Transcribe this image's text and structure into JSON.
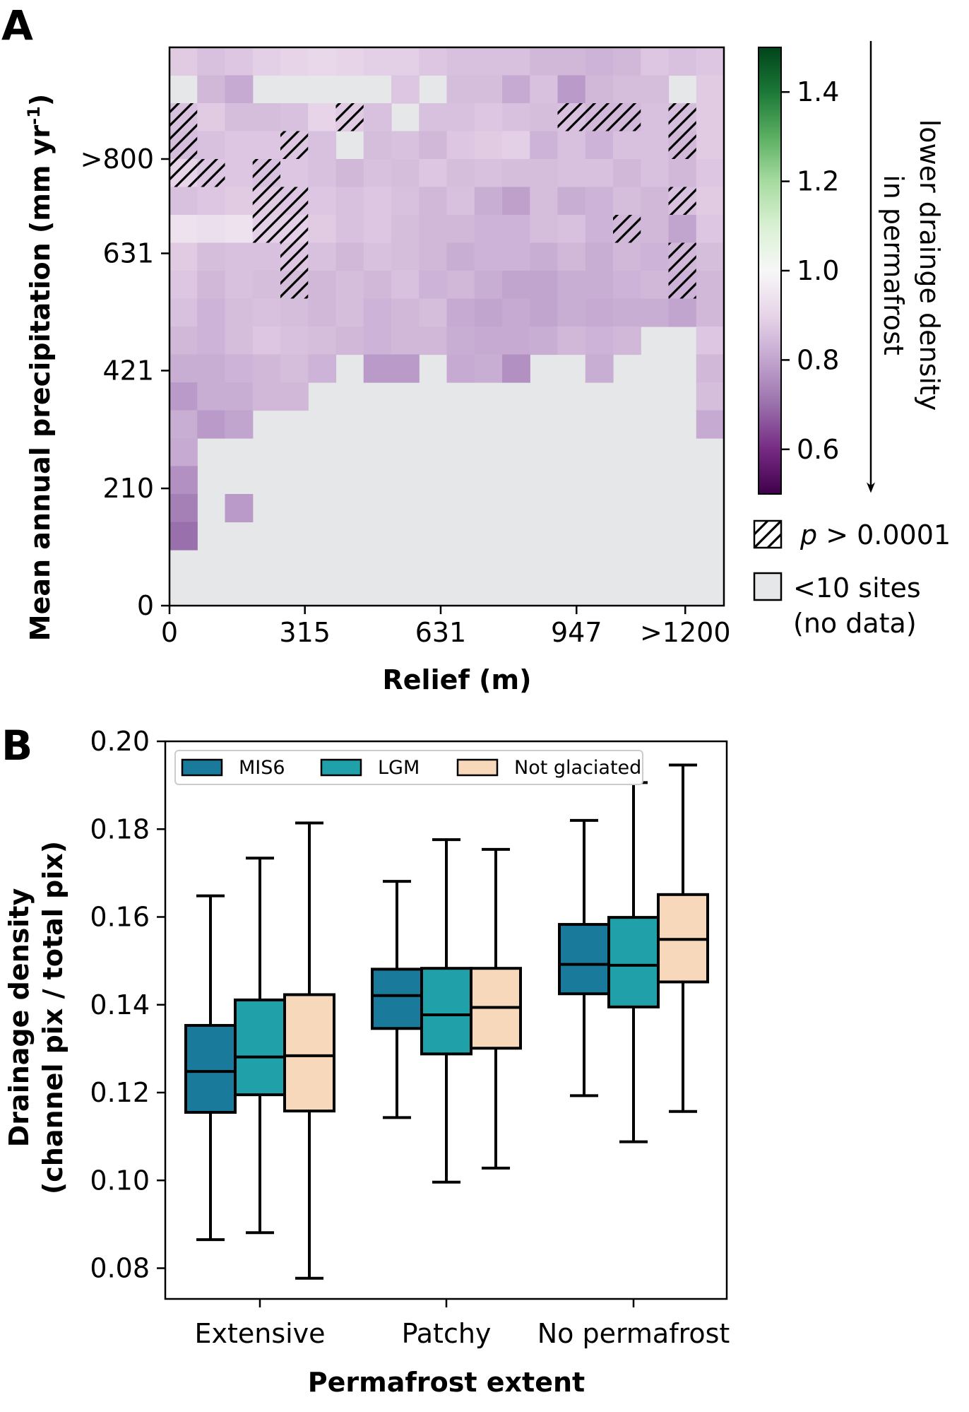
{
  "panels": {
    "a": {
      "label": "A",
      "chart_data": {
        "type": "heatmap",
        "title": "",
        "xlabel": "Relief (m)",
        "ylabel": "Mean annual precipitation (mm yr",
        "ylabel_sup": "-1",
        "ylabel_end": ")",
        "x_ticks": [
          {
            "value": 0,
            "label": "0"
          },
          {
            "value": 315,
            "label": "315"
          },
          {
            "value": 631,
            "label": "631"
          },
          {
            "value": 947,
            "label": "947"
          },
          {
            "value": 1200,
            "label": ">1200"
          }
        ],
        "y_ticks": [
          {
            "value": 0,
            "label": "0"
          },
          {
            "value": 210,
            "label": "210"
          },
          {
            "value": 421,
            "label": "421"
          },
          {
            "value": 631,
            "label": "631"
          },
          {
            "value": 800,
            "label": ">800"
          }
        ],
        "no_data_value": null,
        "rows_top_to_bottom": [
          [
            0.88,
            0.86,
            0.87,
            0.89,
            0.9,
            0.91,
            0.9,
            0.89,
            0.89,
            0.87,
            0.86,
            0.86,
            0.86,
            0.84,
            0.84,
            0.83,
            0.84,
            0.87,
            0.86,
            0.87
          ],
          [
            null,
            0.84,
            0.81,
            null,
            null,
            null,
            null,
            null,
            0.87,
            null,
            0.85,
            0.85,
            0.81,
            0.86,
            0.78,
            0.84,
            0.85,
            0.85,
            null,
            0.88
          ],
          [
            0.86,
            0.88,
            0.85,
            0.85,
            0.86,
            0.9,
            0.88,
            0.86,
            null,
            0.86,
            0.86,
            0.87,
            0.86,
            0.85,
            0.86,
            0.84,
            0.84,
            0.86,
            0.85,
            0.88
          ],
          [
            0.85,
            0.86,
            0.87,
            0.87,
            0.87,
            0.86,
            null,
            0.85,
            0.86,
            0.84,
            0.87,
            0.88,
            0.89,
            0.83,
            0.86,
            0.83,
            0.86,
            0.86,
            0.84,
            0.88
          ],
          [
            0.9,
            0.87,
            0.87,
            0.86,
            0.87,
            0.86,
            0.84,
            0.86,
            0.85,
            0.87,
            0.85,
            0.86,
            0.85,
            0.85,
            0.86,
            0.86,
            0.84,
            0.86,
            0.84,
            0.87
          ],
          [
            0.86,
            0.87,
            0.88,
            0.88,
            0.87,
            0.87,
            0.86,
            0.87,
            0.86,
            0.84,
            0.86,
            0.82,
            0.79,
            0.85,
            0.82,
            0.83,
            0.85,
            0.84,
            0.86,
            0.88
          ],
          [
            0.94,
            0.93,
            0.94,
            0.89,
            0.89,
            0.88,
            0.86,
            0.87,
            0.85,
            0.84,
            0.84,
            0.83,
            0.83,
            0.85,
            0.86,
            0.83,
            0.84,
            0.84,
            0.8,
            0.87
          ],
          [
            0.88,
            0.85,
            0.86,
            0.86,
            0.87,
            0.86,
            0.84,
            0.86,
            0.85,
            0.84,
            0.82,
            0.83,
            0.83,
            0.82,
            0.84,
            0.82,
            0.84,
            0.83,
            0.84,
            0.85
          ],
          [
            0.87,
            0.84,
            0.86,
            0.85,
            0.85,
            0.84,
            0.85,
            0.84,
            0.86,
            0.83,
            0.84,
            0.82,
            0.8,
            0.8,
            0.82,
            0.82,
            0.83,
            0.84,
            0.83,
            0.84
          ],
          [
            0.86,
            0.83,
            0.85,
            0.86,
            0.85,
            0.84,
            0.85,
            0.83,
            0.84,
            0.85,
            0.81,
            0.8,
            0.81,
            0.8,
            0.82,
            0.81,
            0.82,
            0.82,
            0.8,
            0.84
          ],
          [
            0.84,
            0.83,
            0.85,
            0.87,
            0.86,
            0.85,
            0.84,
            0.83,
            0.84,
            0.84,
            0.82,
            0.81,
            0.81,
            0.82,
            0.84,
            0.83,
            0.84,
            null,
            null,
            0.87
          ],
          [
            0.82,
            0.82,
            0.83,
            0.84,
            0.85,
            0.83,
            null,
            0.78,
            0.78,
            null,
            0.81,
            0.82,
            0.76,
            null,
            null,
            0.82,
            null,
            null,
            null,
            0.84
          ],
          [
            0.78,
            0.82,
            0.82,
            0.84,
            0.84,
            null,
            null,
            null,
            null,
            null,
            null,
            null,
            null,
            null,
            null,
            null,
            null,
            null,
            null,
            0.85
          ],
          [
            0.82,
            0.78,
            0.8,
            null,
            null,
            null,
            null,
            null,
            null,
            null,
            null,
            null,
            null,
            null,
            null,
            null,
            null,
            null,
            null,
            0.81
          ],
          [
            0.81,
            null,
            null,
            null,
            null,
            null,
            null,
            null,
            null,
            null,
            null,
            null,
            null,
            null,
            null,
            null,
            null,
            null,
            null,
            null
          ],
          [
            0.76,
            null,
            null,
            null,
            null,
            null,
            null,
            null,
            null,
            null,
            null,
            null,
            null,
            null,
            null,
            null,
            null,
            null,
            null,
            null
          ],
          [
            0.73,
            null,
            0.78,
            null,
            null,
            null,
            null,
            null,
            null,
            null,
            null,
            null,
            null,
            null,
            null,
            null,
            null,
            null,
            null,
            null
          ],
          [
            0.7,
            null,
            null,
            null,
            null,
            null,
            null,
            null,
            null,
            null,
            null,
            null,
            null,
            null,
            null,
            null,
            null,
            null,
            null,
            null
          ],
          [
            null,
            null,
            null,
            null,
            null,
            null,
            null,
            null,
            null,
            null,
            null,
            null,
            null,
            null,
            null,
            null,
            null,
            null,
            null,
            null
          ],
          [
            null,
            null,
            null,
            null,
            null,
            null,
            null,
            null,
            null,
            null,
            null,
            null,
            null,
            null,
            null,
            null,
            null,
            null,
            null,
            null
          ]
        ],
        "hatched_cells": [
          [
            2,
            0
          ],
          [
            3,
            0
          ],
          [
            4,
            0
          ],
          [
            4,
            1
          ],
          [
            4,
            3
          ],
          [
            5,
            3
          ],
          [
            6,
            3
          ],
          [
            7,
            4
          ],
          [
            2,
            6
          ],
          [
            3,
            4
          ],
          [
            5,
            4
          ],
          [
            6,
            4
          ],
          [
            8,
            4
          ],
          [
            2,
            14
          ],
          [
            2,
            15
          ],
          [
            2,
            16
          ],
          [
            2,
            18
          ],
          [
            3,
            18
          ],
          [
            5,
            18
          ],
          [
            6,
            16
          ],
          [
            7,
            18
          ],
          [
            8,
            18
          ]
        ],
        "colorbar": {
          "range": [
            0.5,
            1.5
          ],
          "ticks": [
            0.6,
            0.8,
            1.0,
            1.2,
            1.4
          ],
          "tick_labels": [
            "0.6",
            "0.8",
            "1.0",
            "1.2",
            "1.4"
          ],
          "colormap": "PRGn",
          "center": 1.0
        },
        "arrow_label_line1": "lower drainge density",
        "arrow_label_line2": "in permafrost",
        "legend": {
          "hatch_prefix": "p",
          "hatch_suffix": " > 0.0001",
          "nodata_line1": "<10 sites",
          "nodata_line2": "(no data)"
        },
        "colors": {
          "no_data": "#e6e7e9"
        }
      }
    },
    "b": {
      "label": "B",
      "chart_data": {
        "type": "box",
        "title": "",
        "xlabel": "Permafrost extent",
        "ylabel_line1": "Drainage density",
        "ylabel_line2": "(channel pix / total pix)",
        "categories": [
          "Extensive",
          "Patchy",
          "No permafrost"
        ],
        "ylim": [
          0.073,
          0.2
        ],
        "y_ticks": [
          0.08,
          0.1,
          0.12,
          0.14,
          0.16,
          0.18,
          0.2
        ],
        "y_tick_labels": [
          "0.08",
          "0.10",
          "0.12",
          "0.14",
          "0.16",
          "0.18",
          "0.20"
        ],
        "series": [
          {
            "name": "MIS6",
            "color": "#1a7a9b",
            "boxes": [
              {
                "whislo": 0.0865,
                "q1": 0.1155,
                "median": 0.1248,
                "q3": 0.1353,
                "whishi": 0.1648
              },
              {
                "whislo": 0.1143,
                "q1": 0.1346,
                "median": 0.1421,
                "q3": 0.1481,
                "whishi": 0.1681
              },
              {
                "whislo": 0.1193,
                "q1": 0.1425,
                "median": 0.1492,
                "q3": 0.1583,
                "whishi": 0.182
              }
            ]
          },
          {
            "name": "LGM",
            "color": "#20a0a8",
            "boxes": [
              {
                "whislo": 0.0881,
                "q1": 0.1195,
                "median": 0.1281,
                "q3": 0.1411,
                "whishi": 0.1734
              },
              {
                "whislo": 0.0996,
                "q1": 0.1288,
                "median": 0.1377,
                "q3": 0.1483,
                "whishi": 0.1776
              },
              {
                "whislo": 0.1088,
                "q1": 0.1395,
                "median": 0.149,
                "q3": 0.1599,
                "whishi": 0.1906
              }
            ]
          },
          {
            "name": "Not glaciated",
            "color": "#f7d8bb",
            "boxes": [
              {
                "whislo": 0.0777,
                "q1": 0.1158,
                "median": 0.1284,
                "q3": 0.1423,
                "whishi": 0.1814
              },
              {
                "whislo": 0.1028,
                "q1": 0.1301,
                "median": 0.1394,
                "q3": 0.1483,
                "whishi": 0.1754
              },
              {
                "whislo": 0.1157,
                "q1": 0.1452,
                "median": 0.1549,
                "q3": 0.1651,
                "whishi": 0.1946
              }
            ]
          }
        ],
        "legend_placement": "top-left"
      }
    }
  }
}
